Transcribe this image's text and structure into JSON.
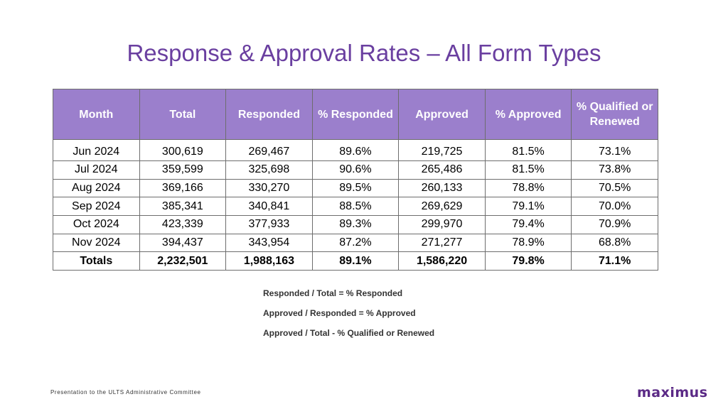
{
  "title": "Response & Approval Rates – All Form Types",
  "table": {
    "headers": [
      "Month",
      "Total",
      "Responded",
      "% Responded",
      "Approved",
      "% Approved",
      "% Qualified or Renewed"
    ],
    "rows": [
      [
        "Jun 2024",
        "300,619",
        "269,467",
        "89.6%",
        "219,725",
        "81.5%",
        "73.1%"
      ],
      [
        "Jul 2024",
        "359,599",
        "325,698",
        "90.6%",
        "265,486",
        "81.5%",
        "73.8%"
      ],
      [
        "Aug 2024",
        "369,166",
        "330,270",
        "89.5%",
        "260,133",
        "78.8%",
        "70.5%"
      ],
      [
        "Sep 2024",
        "385,341",
        "340,841",
        "88.5%",
        "269,629",
        "79.1%",
        "70.0%"
      ],
      [
        "Oct 2024",
        "423,339",
        "377,933",
        "89.3%",
        "299,970",
        "79.4%",
        "70.9%"
      ],
      [
        "Nov 2024",
        "394,437",
        "343,954",
        "87.2%",
        "271,277",
        "78.9%",
        "68.8%"
      ]
    ],
    "totals": [
      "Totals",
      "2,232,501",
      "1,988,163",
      "89.1%",
      "1,586,220",
      "79.8%",
      "71.1%"
    ]
  },
  "formulas": [
    "Responded / Total = % Responded",
    "Approved / Responded = % Approved",
    "Approved / Total - % Qualified or Renewed"
  ],
  "footer": "Presentation to the ULTS Administrative Committee",
  "logo": "maximus",
  "colors": {
    "title": "#6a3fa0",
    "header_bg": "#9b7fcc",
    "logo": "#5b2a86"
  }
}
